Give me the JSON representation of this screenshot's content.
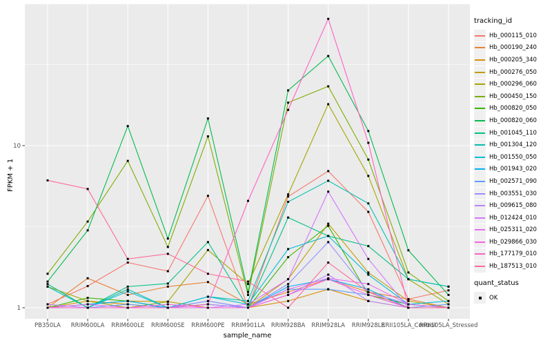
{
  "chart_data": {
    "type": "line",
    "title": "",
    "xlabel": "sample_name",
    "ylabel": "FPKM + 1",
    "y_scale": "log10",
    "y_ticks": [
      1,
      10
    ],
    "y_minor_ticks": [
      3.162,
      31.62
    ],
    "ylim": [
      0.93,
      74
    ],
    "grid": "on",
    "panel_bg": "#EBEBEB",
    "grid_color": "#FFFFFF",
    "axis_text_color": "#4D4D4D",
    "point_shape": "filled-square",
    "point_color": "#000000",
    "categories": [
      "PB350LA",
      "RRIM600LA",
      "RRIM600LE",
      "RRIM600SE",
      "RRIM600PE",
      "RRIM901LA",
      "RRIM928BA",
      "RRIM928LA",
      "RRIM928LE",
      "RRII105LA_Control",
      "RRII105LA_Stressed"
    ],
    "series": [
      {
        "name": "Hb_000115_010",
        "color": "#F8766D",
        "values": [
          1.05,
          1.36,
          1.9,
          1.68,
          4.9,
          1.0,
          4.85,
          6.96,
          3.9,
          1.13,
          1.28
        ]
      },
      {
        "name": "Hb_000190_240",
        "color": "#EA8331",
        "values": [
          1.0,
          1.52,
          1.2,
          1.35,
          1.44,
          1.05,
          1.25,
          1.5,
          1.25,
          1.13,
          1.0
        ]
      },
      {
        "name": "Hb_000205_340",
        "color": "#D89000",
        "values": [
          1.0,
          1.1,
          1.05,
          1.0,
          1.0,
          1.0,
          1.1,
          1.3,
          1.1,
          1.0,
          1.0
        ]
      },
      {
        "name": "Hb_000276_050",
        "color": "#C09B00",
        "values": [
          1.0,
          1.05,
          1.1,
          1.09,
          1.0,
          1.0,
          1.5,
          3.3,
          1.65,
          1.1,
          1.0
        ]
      },
      {
        "name": "Hb_000296_060",
        "color": "#A3A500",
        "values": [
          1.35,
          1.1,
          1.0,
          1.09,
          2.27,
          1.4,
          5.0,
          18.0,
          6.5,
          1.5,
          1.05
        ]
      },
      {
        "name": "Hb_000450_150",
        "color": "#7CAE00",
        "values": [
          1.62,
          3.4,
          8.05,
          2.37,
          11.4,
          1.2,
          18.4,
          23.2,
          8.2,
          1.65,
          1.1
        ]
      },
      {
        "name": "Hb_000820_050",
        "color": "#39B600",
        "values": [
          1.0,
          1.15,
          1.1,
          1.0,
          1.05,
          1.0,
          2.05,
          3.2,
          1.2,
          1.05,
          1.0
        ]
      },
      {
        "name": "Hb_000820_060",
        "color": "#00BB4E",
        "values": [
          1.45,
          3.0,
          13.2,
          2.67,
          14.7,
          1.25,
          21.9,
          35.7,
          12.3,
          2.26,
          1.2
        ]
      },
      {
        "name": "Hb_001045_110",
        "color": "#00C087",
        "values": [
          1.4,
          1.0,
          1.35,
          1.41,
          2.54,
          1.0,
          3.6,
          2.77,
          2.4,
          1.5,
          1.35
        ]
      },
      {
        "name": "Hb_001304_120",
        "color": "#00C0AF",
        "values": [
          1.35,
          1.0,
          1.3,
          1.0,
          1.17,
          1.1,
          4.5,
          6.07,
          4.4,
          1.5,
          1.35
        ]
      },
      {
        "name": "Hb_001550_050",
        "color": "#00BCD8",
        "values": [
          1.0,
          1.0,
          1.26,
          1.0,
          1.17,
          1.05,
          2.3,
          2.77,
          1.6,
          1.05,
          1.1
        ]
      },
      {
        "name": "Hb_001943_020",
        "color": "#00B0F6",
        "values": [
          1.0,
          1.05,
          1.1,
          1.0,
          1.1,
          1.0,
          1.35,
          1.5,
          1.3,
          1.0,
          1.0
        ]
      },
      {
        "name": "Hb_002571_090",
        "color": "#619CFF",
        "values": [
          1.0,
          1.0,
          1.05,
          1.0,
          1.05,
          1.0,
          1.3,
          1.3,
          1.2,
          1.0,
          1.05
        ]
      },
      {
        "name": "Hb_003551_030",
        "color": "#9590FF",
        "values": [
          1.0,
          1.0,
          1.0,
          1.0,
          1.1,
          1.0,
          1.4,
          2.54,
          1.25,
          1.05,
          1.0
        ]
      },
      {
        "name": "Hb_009615_080",
        "color": "#B983FF",
        "values": [
          1.05,
          1.0,
          1.0,
          1.0,
          1.05,
          1.0,
          1.2,
          1.6,
          1.1,
          1.0,
          1.0
        ]
      },
      {
        "name": "Hb_012424_010",
        "color": "#D376FF",
        "values": [
          1.0,
          1.0,
          1.0,
          1.0,
          1.0,
          1.05,
          1.5,
          5.2,
          2.0,
          1.0,
          1.0
        ]
      },
      {
        "name": "Hb_025311_020",
        "color": "#E76BF3",
        "values": [
          1.0,
          1.05,
          1.0,
          1.0,
          1.0,
          1.0,
          1.3,
          1.52,
          1.4,
          1.05,
          1.0
        ]
      },
      {
        "name": "Hb_029866_030",
        "color": "#F763E0",
        "values": [
          1.0,
          1.0,
          1.0,
          1.05,
          1.0,
          1.0,
          1.2,
          1.5,
          1.2,
          1.0,
          1.0
        ]
      },
      {
        "name": "Hb_177179_010",
        "color": "#FF61C3",
        "values": [
          1.0,
          1.0,
          1.0,
          1.0,
          1.05,
          4.56,
          16.6,
          60.5,
          10.4,
          1.0,
          1.0
        ]
      },
      {
        "name": "Hb_187513_010",
        "color": "#FF6A98",
        "values": [
          6.1,
          5.4,
          2.0,
          2.15,
          1.62,
          1.45,
          1.0,
          1.9,
          1.25,
          1.0,
          1.0
        ]
      }
    ],
    "legend": {
      "color_title": "tracking_id",
      "shape_title": "quant_status",
      "shape_items": [
        {
          "label": "OK"
        }
      ]
    }
  }
}
